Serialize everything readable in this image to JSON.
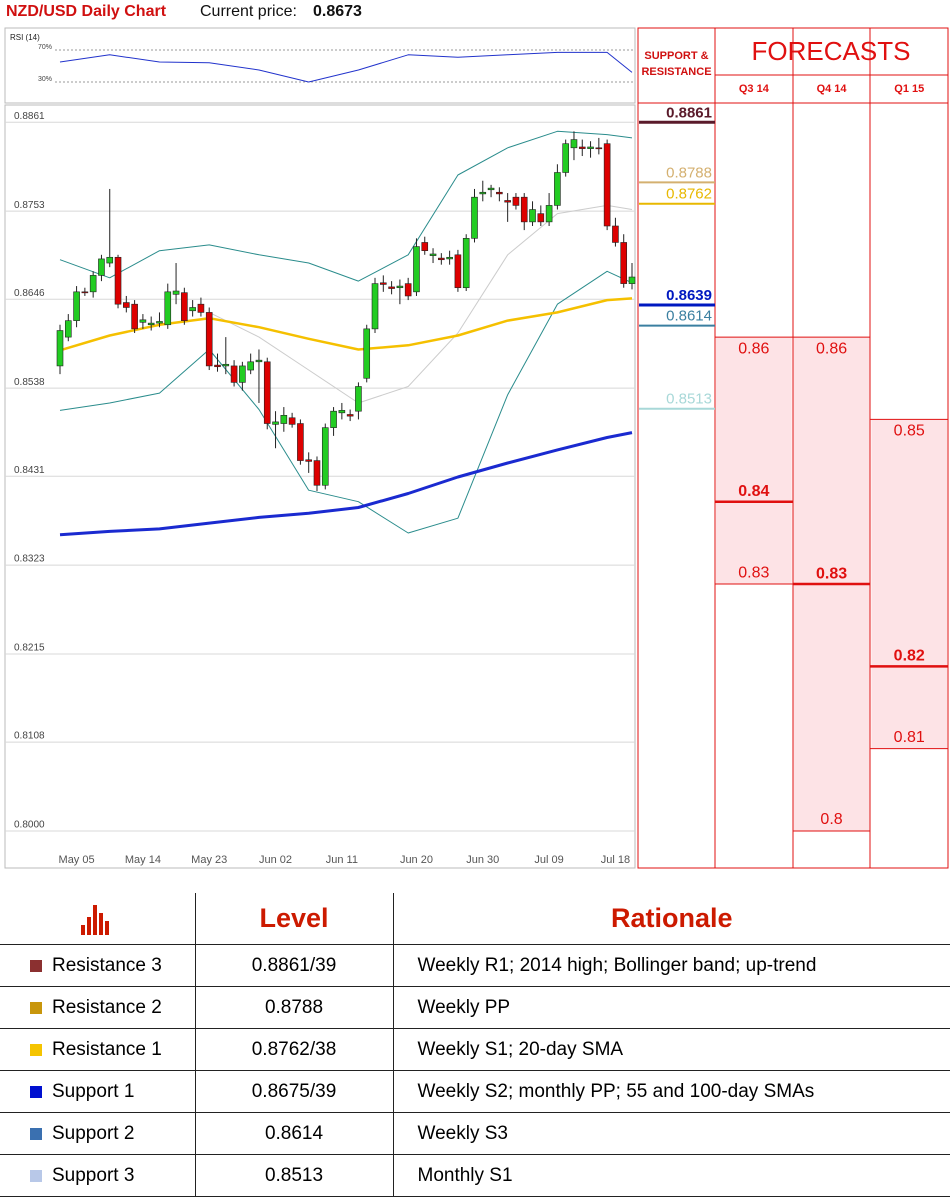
{
  "header": {
    "title": "NZD/USD Daily Chart",
    "price_label": "Current price:",
    "price": "0.8673"
  },
  "chart_data": {
    "type": "candlestick",
    "up_color": "#22cc22",
    "down_color": "#dd0000",
    "ylim": [
      0.7955,
      0.8882
    ],
    "yticks": [
      0.8861,
      0.8753,
      0.8646,
      0.8538,
      0.8431,
      0.8323,
      0.8215,
      0.8108,
      {
        "value": 0.8,
        "label": "0.8000"
      }
    ],
    "grid": true,
    "categories": [
      null,
      null,
      "May 05",
      null,
      null,
      null,
      null,
      null,
      null,
      null,
      "May 14",
      null,
      null,
      null,
      null,
      null,
      null,
      null,
      "May 23",
      null,
      null,
      null,
      null,
      null,
      null,
      null,
      "Jun 02",
      null,
      null,
      null,
      null,
      null,
      null,
      null,
      "Jun 11",
      null,
      null,
      null,
      null,
      null,
      null,
      null,
      null,
      "Jun 20",
      null,
      null,
      null,
      null,
      null,
      null,
      null,
      "Jun 30",
      null,
      null,
      null,
      null,
      null,
      null,
      null,
      "Jul 09",
      null,
      null,
      null,
      null,
      null,
      null,
      null,
      "Jul 18",
      null,
      null
    ],
    "ohlc": [
      [
        0.8565,
        0.8615,
        0.8555,
        0.8608
      ],
      [
        0.86,
        0.8628,
        0.8595,
        0.862
      ],
      [
        0.862,
        0.8662,
        0.8612,
        0.8655
      ],
      [
        0.8655,
        0.866,
        0.865,
        0.8654
      ],
      [
        0.8655,
        0.868,
        0.8648,
        0.8675
      ],
      [
        0.8675,
        0.87,
        0.8668,
        0.8695
      ],
      [
        0.869,
        0.878,
        0.8685,
        0.8697
      ],
      [
        0.8697,
        0.87,
        0.8635,
        0.864
      ],
      [
        0.8642,
        0.865,
        0.863,
        0.8636
      ],
      [
        0.864,
        0.8645,
        0.8605,
        0.861
      ],
      [
        0.8618,
        0.8628,
        0.861,
        0.8621
      ],
      [
        0.8615,
        0.8625,
        0.8608,
        0.8617
      ],
      [
        0.8617,
        0.863,
        0.8612,
        0.8619
      ],
      [
        0.8615,
        0.8665,
        0.861,
        0.8655
      ],
      [
        0.8652,
        0.869,
        0.864,
        0.8656
      ],
      [
        0.8654,
        0.866,
        0.8615,
        0.862
      ],
      [
        0.8632,
        0.8645,
        0.8625,
        0.8636
      ],
      [
        0.864,
        0.8648,
        0.8625,
        0.863
      ],
      [
        0.863,
        0.8636,
        0.856,
        0.8565
      ],
      [
        0.8566,
        0.858,
        0.8558,
        0.8564
      ],
      [
        0.8565,
        0.86,
        0.8555,
        0.8567
      ],
      [
        0.8565,
        0.8572,
        0.854,
        0.8545
      ],
      [
        0.8545,
        0.857,
        0.8535,
        0.8565
      ],
      [
        0.856,
        0.858,
        0.8555,
        0.857
      ],
      [
        0.857,
        0.8585,
        0.852,
        0.8572
      ],
      [
        0.857,
        0.8575,
        0.8488,
        0.8495
      ],
      [
        0.8494,
        0.851,
        0.8465,
        0.8497
      ],
      [
        0.8495,
        0.8515,
        0.8485,
        0.8505
      ],
      [
        0.8502,
        0.8508,
        0.849,
        0.8494
      ],
      [
        0.8495,
        0.85,
        0.8445,
        0.845
      ],
      [
        0.8451,
        0.846,
        0.8435,
        0.8449
      ],
      [
        0.845,
        0.8455,
        0.8413,
        0.842
      ],
      [
        0.842,
        0.8495,
        0.8415,
        0.849
      ],
      [
        0.849,
        0.8515,
        0.848,
        0.851
      ],
      [
        0.8508,
        0.852,
        0.85,
        0.8511
      ],
      [
        0.8506,
        0.8512,
        0.8498,
        0.8504
      ],
      [
        0.851,
        0.8545,
        0.85,
        0.854
      ],
      [
        0.855,
        0.8615,
        0.8545,
        0.861
      ],
      [
        0.861,
        0.8672,
        0.8605,
        0.8665
      ],
      [
        0.8666,
        0.8675,
        0.8655,
        0.8664
      ],
      [
        0.8661,
        0.8668,
        0.8652,
        0.8659
      ],
      [
        0.866,
        0.867,
        0.864,
        0.8662
      ],
      [
        0.8665,
        0.8672,
        0.8645,
        0.865
      ],
      [
        0.8655,
        0.872,
        0.865,
        0.871
      ],
      [
        0.8715,
        0.8722,
        0.87,
        0.8705
      ],
      [
        0.8699,
        0.8708,
        0.869,
        0.8701
      ],
      [
        0.8696,
        0.8702,
        0.8688,
        0.8694
      ],
      [
        0.8695,
        0.8705,
        0.8688,
        0.8697
      ],
      [
        0.87,
        0.8706,
        0.8655,
        0.866
      ],
      [
        0.866,
        0.8725,
        0.8656,
        0.872
      ],
      [
        0.872,
        0.878,
        0.8715,
        0.877
      ],
      [
        0.8774,
        0.879,
        0.8765,
        0.8776
      ],
      [
        0.8779,
        0.8785,
        0.877,
        0.8781
      ],
      [
        0.8776,
        0.8782,
        0.8765,
        0.8774
      ],
      [
        0.8766,
        0.8775,
        0.874,
        0.8764
      ],
      [
        0.877,
        0.8775,
        0.8755,
        0.876
      ],
      [
        0.877,
        0.8775,
        0.873,
        0.874
      ],
      [
        0.874,
        0.8765,
        0.8735,
        0.8755
      ],
      [
        0.875,
        0.876,
        0.8735,
        0.874
      ],
      [
        0.874,
        0.8775,
        0.8735,
        0.876
      ],
      [
        0.876,
        0.881,
        0.8755,
        0.88
      ],
      [
        0.88,
        0.884,
        0.8795,
        0.8835
      ],
      [
        0.883,
        0.885,
        0.8815,
        0.884
      ],
      [
        0.8831,
        0.884,
        0.882,
        0.8829
      ],
      [
        0.8829,
        0.8838,
        0.8818,
        0.8831
      ],
      [
        0.883,
        0.8842,
        0.8822,
        0.8829
      ],
      [
        0.8835,
        0.884,
        0.873,
        0.8735
      ],
      [
        0.8735,
        0.8745,
        0.871,
        0.8715
      ],
      [
        0.8715,
        0.8725,
        0.866,
        0.8665
      ],
      [
        0.8665,
        0.869,
        0.8658,
        0.8673
      ]
    ],
    "lines": [
      {
        "color": "#cccccc",
        "width": 1,
        "x": [
          0,
          6,
          12,
          18,
          24,
          30,
          36,
          42,
          48,
          54,
          60,
          66,
          69
        ],
        "values": [
          null,
          null,
          null,
          0.863,
          0.86,
          0.856,
          0.852,
          0.854,
          0.8605,
          0.87,
          0.875,
          0.876,
          0.8755
        ]
      },
      {
        "color": "#2a8c8c",
        "width": 1,
        "x": [
          0,
          6,
          12,
          18,
          24,
          30,
          36,
          42,
          48,
          54,
          60,
          66,
          69
        ],
        "values": [
          0.8694,
          0.8672,
          0.8705,
          0.8712,
          0.87,
          0.869,
          0.8668,
          0.87,
          0.8797,
          0.883,
          0.885,
          0.8846,
          0.8842
        ]
      },
      {
        "color": "#2a8c8c",
        "width": 1,
        "x": [
          0,
          6,
          12,
          18,
          24,
          30,
          36,
          42,
          48,
          54,
          60,
          66,
          69
        ],
        "values": [
          0.8511,
          0.852,
          0.8532,
          0.8585,
          0.8512,
          0.8414,
          0.84,
          0.8362,
          0.838,
          0.853,
          0.864,
          0.868,
          0.8666
        ]
      },
      {
        "color": "#f5c000",
        "width": 2.5,
        "x": [
          0,
          6,
          12,
          18,
          24,
          30,
          36,
          42,
          48,
          54,
          60,
          66,
          69
        ],
        "values": [
          0.8584,
          0.8602,
          0.8615,
          0.8623,
          0.8612,
          0.8598,
          0.8585,
          0.859,
          0.8602,
          0.862,
          0.863,
          0.8645,
          0.8647
        ]
      },
      {
        "color": "#1a2ad0",
        "width": 3,
        "x": [
          0,
          6,
          12,
          18,
          24,
          30,
          36,
          42,
          48,
          54,
          60,
          66,
          69
        ],
        "values": [
          0.836,
          0.8364,
          0.8367,
          0.8374,
          0.8381,
          0.8386,
          0.8393,
          0.841,
          0.843,
          0.8447,
          0.8463,
          0.8478,
          0.8484
        ]
      }
    ],
    "rsi": {
      "label": "RSI (14)",
      "color": "#2233cc",
      "ylim": [
        0,
        100
      ],
      "yticks": [
        {
          "value": 70,
          "label": "70%"
        },
        {
          "value": 30,
          "label": "30%"
        }
      ],
      "x": [
        0,
        6,
        12,
        18,
        24,
        30,
        36,
        42,
        48,
        54,
        60,
        66,
        69
      ],
      "values": [
        55,
        64,
        55,
        54,
        45,
        30,
        45,
        64,
        61,
        64,
        67,
        67,
        42
      ]
    }
  },
  "forecast": {
    "sr_title": "SUPPORT & RESISTANCE",
    "title": "FORECASTS",
    "levels": [
      {
        "value": 0.8861,
        "color": "#5a1a2a",
        "bold": true
      },
      {
        "value": 0.8788,
        "color": "#d4b070",
        "bold": false
      },
      {
        "value": 0.8762,
        "color": "#e8b800",
        "bold": false
      },
      {
        "value": 0.8639,
        "color": "#0018c0",
        "bold": true
      },
      {
        "value": 0.8614,
        "color": "#3a7fa0",
        "bold": false
      },
      {
        "value": 0.8513,
        "color": "#a8d8d8",
        "bold": false
      }
    ],
    "quarters": [
      {
        "label": "Q3 14",
        "high": 0.86,
        "median": 0.84,
        "low": 0.83
      },
      {
        "label": "Q4 14",
        "high": 0.86,
        "median": 0.83,
        "low": 0.8
      },
      {
        "label": "Q1 15",
        "high": 0.85,
        "median": 0.82,
        "low": 0.81
      }
    ]
  },
  "table": {
    "columns": [
      "Level",
      "Rationale"
    ],
    "rows": [
      {
        "name": "Resistance 3",
        "color": "#8b3030",
        "level": "0.8861/39",
        "rationale": "Weekly R1; 2014 high; Bollinger band; up-trend"
      },
      {
        "name": "Resistance 2",
        "color": "#c8960c",
        "level": "0.8788",
        "rationale": "Weekly PP"
      },
      {
        "name": "Resistance 1",
        "color": "#f5c400",
        "level": "0.8762/38",
        "rationale": "Weekly S1; 20-day SMA"
      },
      {
        "name": "Support 1",
        "color": "#0010d0",
        "level": "0.8675/39",
        "rationale": "Weekly S2; monthly PP; 55 and 100-day SMAs"
      },
      {
        "name": "Support 2",
        "color": "#3a70b0",
        "level": "0.8614",
        "rationale": "Weekly S3"
      },
      {
        "name": "Support 3",
        "color": "#b8c8e8",
        "level": "0.8513",
        "rationale": "Monthly S1"
      }
    ]
  }
}
